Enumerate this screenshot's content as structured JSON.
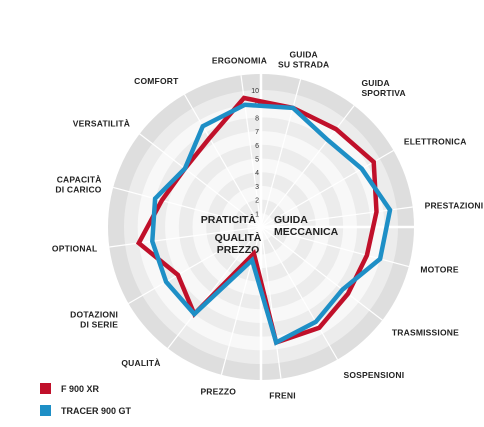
{
  "chart_data": {
    "type": "radar",
    "categories": [
      "GUIDA|SU STRADA",
      "GUIDA|SPORTIVA",
      "ELETTRONICA",
      "PRESTAZIONI",
      "MOTORE",
      "TRASMISSIONE",
      "SOSPENSIONI",
      "FRENI",
      "PREZZO",
      "QUALITÀ",
      "DOTAZIONI|DI SERIE",
      "OPTIONAL",
      "CAPACITÀ|DI CARICO",
      "VERSATILITÀ",
      "COMFORT",
      "ERGONOMIA"
    ],
    "scale": {
      "min": 0,
      "max": 10,
      "ticks": [
        "1",
        "2",
        "3",
        "4",
        "5",
        "6",
        "7",
        "8",
        "9",
        "10"
      ]
    },
    "sector_labels": [
      "PRATICITÀ",
      "GUIDA|MECCANICA",
      "QUALITÀ|PREZZO"
    ],
    "series": [
      {
        "name": "F 900 XR",
        "color": "#c0102a",
        "values": [
          9,
          9,
          9.5,
          8.5,
          8,
          8,
          8.5,
          8.5,
          2,
          8,
          7,
          9,
          7.5,
          7,
          7.5,
          9.5
        ]
      },
      {
        "name": "TRACER 900 GT",
        "color": "#1e8fc6",
        "values": [
          9,
          8,
          8.5,
          9.5,
          9,
          7.5,
          8,
          8.5,
          2.5,
          8,
          8,
          8,
          8,
          7,
          8.5,
          9
        ]
      }
    ]
  }
}
